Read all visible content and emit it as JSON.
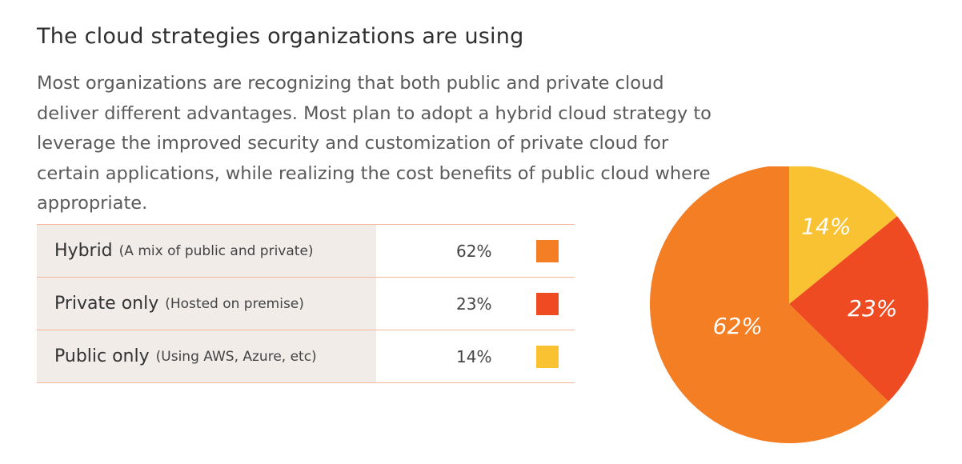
{
  "chart_data": {
    "type": "pie",
    "title": "The cloud strategies organizations are using",
    "subtitle": "Most organizations are recognizing that both public and private cloud deliver different advantages. Most plan to adopt a hybrid cloud strategy to leverage the improved security and customization of private cloud for certain applications, while realizing the cost benefits of public cloud where appropriate.",
    "slices": [
      {
        "name": "Public only",
        "note": "(Using AWS, Azure, etc)",
        "value": 14,
        "label": "14%",
        "color": "#f9c232"
      },
      {
        "name": "Private only",
        "note": "(Hosted on premise)",
        "value": 23,
        "label": "23%",
        "color": "#ef4b23"
      },
      {
        "name": "Hybrid",
        "note": "(A mix of public and private)",
        "value": 62,
        "label": "62%",
        "color": "#f47e23"
      }
    ],
    "legend": [
      {
        "name": "Hybrid",
        "note": "(A mix of public and private)",
        "value": "62%",
        "color": "#f47e23"
      },
      {
        "name": "Private only",
        "note": "(Hosted on premise)",
        "value": "23%",
        "color": "#ef4b23"
      },
      {
        "name": "Public only",
        "note": "(Using AWS, Azure, etc)",
        "value": "14%",
        "color": "#f9c232"
      }
    ]
  }
}
